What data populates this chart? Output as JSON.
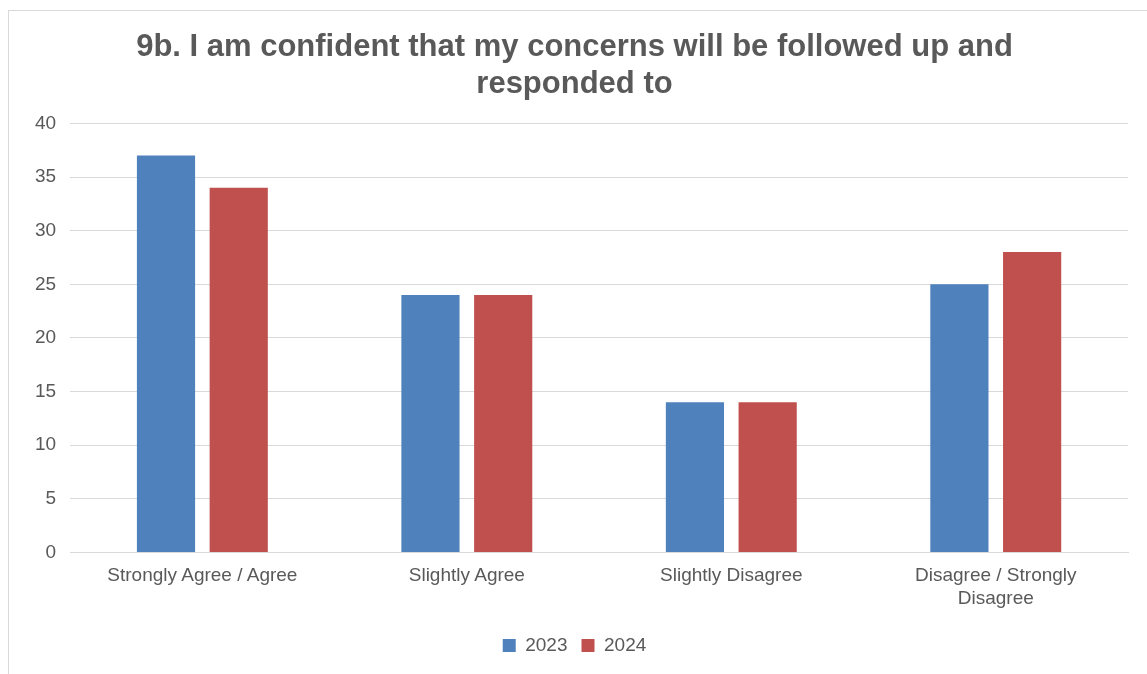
{
  "chart_data": {
    "type": "bar",
    "title": "9b. I am confident that my concerns will be followed up and responded to",
    "categories": [
      "Strongly Agree / Agree",
      "Slightly Agree",
      "Slightly Disagree",
      "Disagree / Strongly Disagree"
    ],
    "series": [
      {
        "name": "2023",
        "color": "#4f81bd",
        "values": [
          37,
          24,
          14,
          25
        ]
      },
      {
        "name": "2024",
        "color": "#c0504d",
        "values": [
          34,
          24,
          14,
          28
        ]
      }
    ],
    "ylim": [
      0,
      40
    ],
    "yticks": [
      0,
      5,
      10,
      15,
      20,
      25,
      30,
      35,
      40
    ],
    "grid": "y",
    "legend": "bottom"
  }
}
